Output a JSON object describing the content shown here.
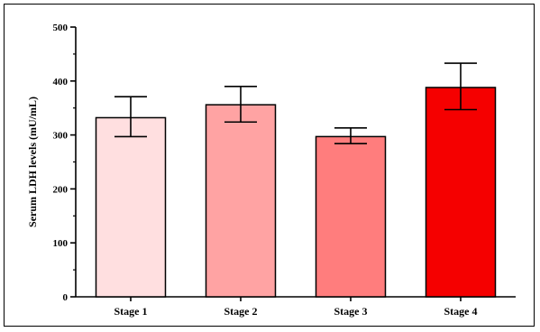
{
  "chart_data": {
    "type": "bar",
    "title": "",
    "xlabel": "",
    "ylabel": "Serum LDH levels (mU/mL)",
    "ylim": [
      0,
      500
    ],
    "yticks": [
      "0",
      "100",
      "200",
      "300",
      "400",
      "500"
    ],
    "categories": [
      "Stage 1",
      "Stage 2",
      "Stage 3",
      "Stage 4"
    ],
    "values": [
      332,
      356,
      297,
      388
    ],
    "error_low": [
      297,
      324,
      284,
      347
    ],
    "error_high": [
      371,
      390,
      313,
      433
    ],
    "bar_colors": [
      "#ffdfe0",
      "#ffa3a3",
      "#ff7d7d",
      "#f50000"
    ],
    "grid": false,
    "legend": "none"
  }
}
